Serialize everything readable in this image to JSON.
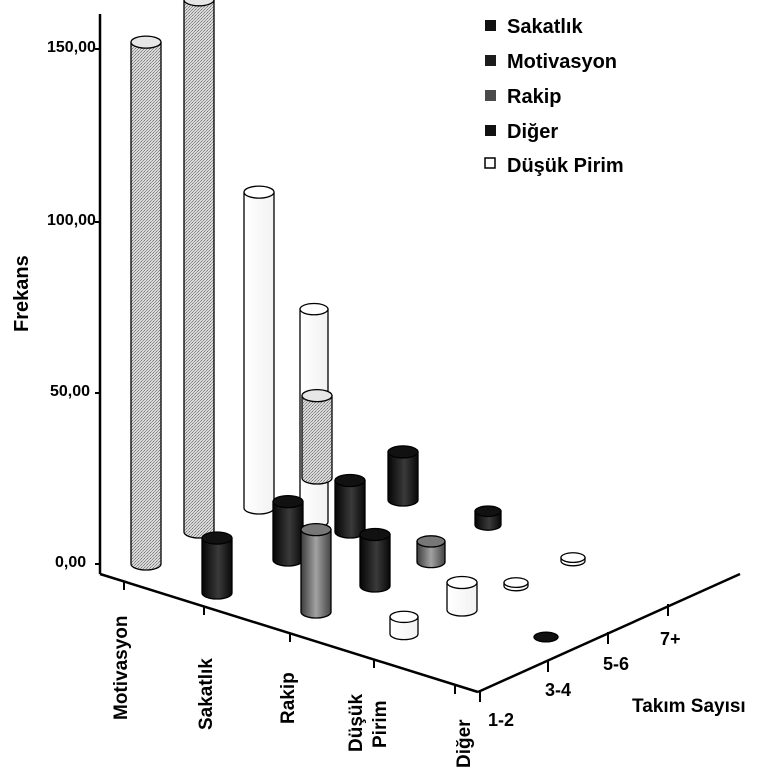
{
  "chart_data": {
    "type": "bar",
    "title": "",
    "ylabel": "Frekans",
    "xlabel": "Takım Sayısı",
    "depth_label": "",
    "ylim": [
      0,
      150
    ],
    "yticks": [
      "0,00",
      "50,00",
      "100,00",
      "150,00"
    ],
    "categories": [
      "Motivasyon",
      "Sakatlık",
      "Rakip",
      "Düşük Pirim",
      "Diğer"
    ],
    "team_sizes": [
      "1-2",
      "3-4",
      "5-6",
      "7+"
    ],
    "legend": {
      "placement": "top-right",
      "entries": [
        "Sakatlık",
        "Motivasyon",
        "Rakip",
        "Diğer",
        "Düşük Pirim"
      ]
    },
    "series": [
      {
        "name": "Motivasyon",
        "team_size": "1-2",
        "value": 152,
        "fill": "hatched-light"
      },
      {
        "name": "Sakatlık",
        "team_size": "1-2",
        "value": 155,
        "fill": "hatched-light"
      },
      {
        "name": "Sakatlık",
        "team_size": "3-4",
        "value": 16,
        "fill": "dark"
      },
      {
        "name": "Düşük Pirim",
        "team_size": "1-2",
        "value": 92,
        "fill": "white"
      },
      {
        "name": "Düşük Pirim",
        "team_size": "3-4",
        "value": 62,
        "fill": "white"
      },
      {
        "name": "Rakip",
        "team_size": "1-2",
        "value": 24,
        "fill": "hatched-light"
      },
      {
        "name": "Rakip",
        "team_size": "3-4",
        "value": 17,
        "fill": "dark"
      },
      {
        "name": "Rakip",
        "team_size": "5-6",
        "value": 15,
        "fill": "dark"
      },
      {
        "name": "Rakip",
        "team_size": "7+",
        "value": 24,
        "fill": "gray"
      },
      {
        "name": "Düşük Pirim",
        "team_size": "5-6",
        "value": 14,
        "fill": "dark"
      },
      {
        "name": "Düşük Pirim",
        "team_size": "7+",
        "value": 15,
        "fill": "dark"
      },
      {
        "name": "Diğer",
        "team_size": "3-4",
        "value": 6,
        "fill": "gray"
      },
      {
        "name": "Diğer",
        "team_size": "5-6",
        "value": 4,
        "fill": "dark"
      },
      {
        "name": "Diğer",
        "team_size": "1-2",
        "value": 8,
        "fill": "white"
      },
      {
        "name": "Diğer",
        "team_size": "3-4",
        "value": 5,
        "fill": "white"
      },
      {
        "name": "Diğer",
        "team_size": "5-6",
        "value": 1,
        "fill": "white"
      },
      {
        "name": "Diğer",
        "team_size": "7+",
        "value": 1,
        "fill": "white"
      },
      {
        "name": "Diğer",
        "team_size": "1-2",
        "value": 0,
        "fill": "dark"
      }
    ]
  }
}
